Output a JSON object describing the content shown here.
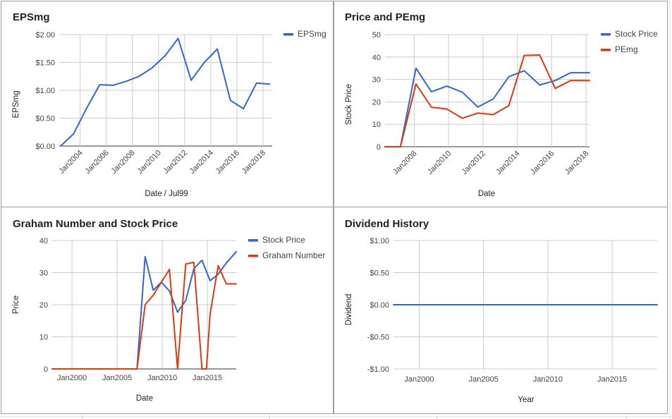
{
  "colors": {
    "blue": "#3366cc",
    "red": "#dc3912",
    "grid": "#cccccc",
    "axis": "#333333"
  },
  "chart_data": [
    {
      "id": "eps",
      "type": "line",
      "title": "EPSmg",
      "xlabel": "Date / Jul99",
      "ylabel": "EPSmg",
      "xlim": [
        2002.4,
        2018.7
      ],
      "ylim": [
        0,
        2
      ],
      "y_ticks": [
        0,
        0.5,
        1,
        1.5,
        2
      ],
      "y_tick_labels": [
        "$0.00",
        "$0.50",
        "$1.00",
        "$1.50",
        "$2.00"
      ],
      "x_ticks": [
        2004,
        2006,
        2008,
        2010,
        2012,
        2014,
        2016,
        2018
      ],
      "x_tick_labels": [
        "Jan2004",
        "Jan2006",
        "Jan2008",
        "Jan2010",
        "Jan2012",
        "Jan2014",
        "Jan2016",
        "Jan2018"
      ],
      "grid": true,
      "legend": "top-right",
      "x_tick_rotate": -45,
      "series": [
        {
          "name": "EPSmg",
          "color": "#3366cc",
          "x": [
            2002.5,
            2003.5,
            2004.5,
            2005.5,
            2006.5,
            2007.5,
            2008.5,
            2009.5,
            2010.5,
            2011.5,
            2012.5,
            2013.5,
            2014.5,
            2015.5,
            2016.5,
            2017.5,
            2018.5
          ],
          "y": [
            0.0,
            0.22,
            0.68,
            1.1,
            1.09,
            1.16,
            1.25,
            1.4,
            1.62,
            1.93,
            1.18,
            1.5,
            1.74,
            0.82,
            0.67,
            1.13,
            1.11
          ]
        }
      ]
    },
    {
      "id": "price_pe",
      "type": "line",
      "title": "Price and PEmg",
      "xlabel": "Date",
      "ylabel": "Stock Price",
      "xlim": [
        2006.3,
        2018.2
      ],
      "ylim": [
        0,
        50
      ],
      "y_ticks": [
        0,
        10,
        20,
        30,
        40,
        50
      ],
      "y_tick_labels": [
        "0",
        "10",
        "20",
        "30",
        "40",
        "50"
      ],
      "x_ticks": [
        2008,
        2010,
        2012,
        2014,
        2016,
        2018
      ],
      "x_tick_labels": [
        "Jan2008",
        "Jan2010",
        "Jan2012",
        "Jan2014",
        "Jan2016",
        "Jan2018"
      ],
      "grid": true,
      "legend": "top-right",
      "x_tick_rotate": -45,
      "series": [
        {
          "name": "Stock Price",
          "color": "#3366cc",
          "x": [
            2006.3,
            2007.2,
            2008.1,
            2009.0,
            2009.9,
            2010.8,
            2011.7,
            2012.6,
            2013.5,
            2014.4,
            2015.3,
            2016.2,
            2017.1,
            2018.2
          ],
          "y": [
            0,
            0,
            35,
            24.5,
            27,
            24.3,
            17.7,
            21.3,
            31.2,
            33.9,
            27.5,
            29.5,
            33,
            33
          ]
        },
        {
          "name": "PEmg",
          "color": "#dc3912",
          "x": [
            2006.3,
            2007.2,
            2008.1,
            2009.0,
            2009.9,
            2010.8,
            2011.7,
            2012.6,
            2013.5,
            2014.4,
            2015.3,
            2016.2,
            2017.1,
            2018.2
          ],
          "y": [
            0,
            0,
            28,
            17.6,
            16.8,
            12.7,
            15,
            14.3,
            18.3,
            40.7,
            40.9,
            26,
            29.5,
            29.5
          ]
        }
      ]
    },
    {
      "id": "graham",
      "type": "line",
      "title": "Graham Number and Stock Price",
      "xlabel": "Date",
      "ylabel": "Price",
      "xlim": [
        1997.8,
        2018.2
      ],
      "ylim": [
        0,
        40
      ],
      "y_ticks": [
        0,
        10,
        20,
        30,
        40
      ],
      "y_tick_labels": [
        "0",
        "10",
        "20",
        "30",
        "40"
      ],
      "x_ticks": [
        2000,
        2005,
        2010,
        2015
      ],
      "x_tick_labels": [
        "Jan2000",
        "Jan2005",
        "Jan2010",
        "Jan2015"
      ],
      "grid": true,
      "legend": "top-right",
      "x_tick_rotate": 0,
      "series": [
        {
          "name": "Stock Price",
          "color": "#3366cc",
          "x": [
            1997.8,
            2006.3,
            2007.2,
            2008.1,
            2009.0,
            2009.9,
            2010.8,
            2011.7,
            2012.6,
            2013.5,
            2014.4,
            2015.3,
            2016.2,
            2017.1,
            2018.2
          ],
          "y": [
            0,
            0,
            0,
            35,
            24.5,
            27,
            24.3,
            17.7,
            21.3,
            31.2,
            33.9,
            27.5,
            29.5,
            33,
            36.5
          ]
        },
        {
          "name": "Graham Number",
          "color": "#dc3912",
          "x": [
            1997.8,
            2006.3,
            2007.2,
            2008.1,
            2009.0,
            2009.9,
            2010.8,
            2011.7,
            2012.1,
            2012.6,
            2013.5,
            2014.4,
            2014.9,
            2015.3,
            2016.2,
            2017.1,
            2018.2
          ],
          "y": [
            0,
            0,
            0,
            20,
            23,
            27,
            31,
            0,
            15,
            32.7,
            33.2,
            0,
            0,
            17,
            32.2,
            26.5,
            26.5
          ]
        }
      ]
    },
    {
      "id": "dividend",
      "type": "line",
      "title": "Dividend History",
      "xlabel": "Year",
      "ylabel": "Dividend",
      "xlim": [
        1998,
        2018.5
      ],
      "ylim": [
        -1,
        1
      ],
      "y_ticks": [
        -1,
        -0.5,
        0,
        0.5,
        1
      ],
      "y_tick_labels": [
        "-$1.00",
        "-$0.50",
        "$0.00",
        "$0.50",
        "$1.00"
      ],
      "x_ticks": [
        2000,
        2005,
        2010,
        2015
      ],
      "x_tick_labels": [
        "Jan2000",
        "Jan2005",
        "Jan2010",
        "Jan2015"
      ],
      "grid": true,
      "legend": "none",
      "x_tick_rotate": 0,
      "series": [
        {
          "color": "#3366cc",
          "x": [
            1998,
            2018.5
          ],
          "y": [
            0,
            0
          ]
        }
      ]
    }
  ]
}
